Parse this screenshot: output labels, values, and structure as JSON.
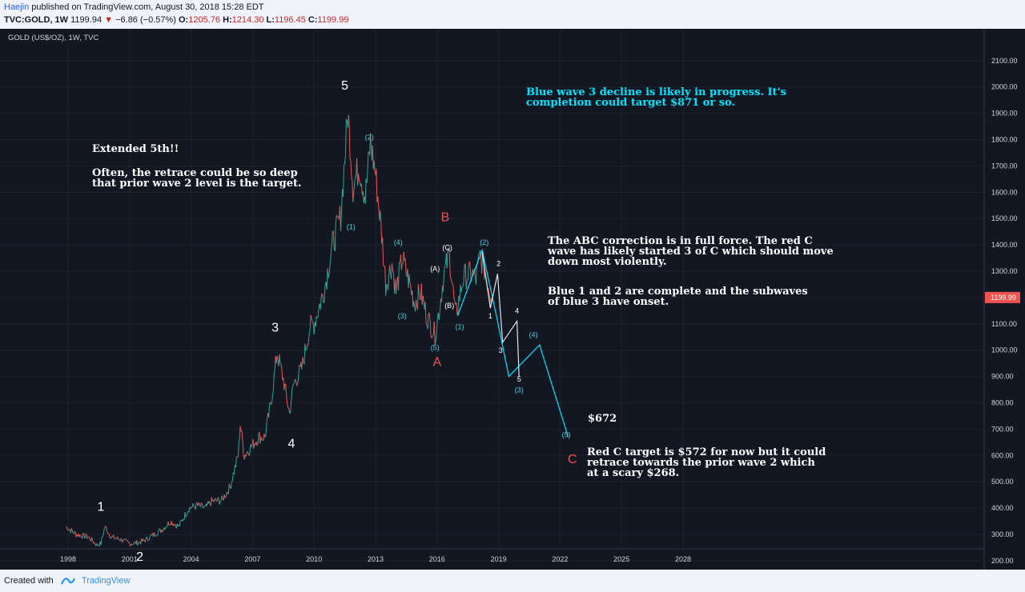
{
  "header": {
    "author": "Haejin",
    "published": "published on TradingView.com, August 30, 2018 15:28 EDT",
    "symbol": "TVC:GOLD, 1W",
    "last": "1199.94",
    "change": "−6.86 (−0.57%)",
    "open_label": "O:",
    "open": "1205.76",
    "high_label": "H:",
    "high": "1214.30",
    "low_label": "L:",
    "low": "1196.45",
    "close_label": "C:",
    "close": "1199.99"
  },
  "chart_title": "GOLD (US$/OZ), 1W, TVC",
  "footer": {
    "created_with": "Created with",
    "brand": "TradingView"
  },
  "colors": {
    "bg": "#131722",
    "up": "#26a69a",
    "down": "#ef5350",
    "cyan": "#00e5ff",
    "red_label": "#ef5350",
    "price_tag": "#ef5350"
  },
  "annotations": {
    "extended_title": "Extended 5th!!",
    "extended_l1": "Often, the retrace could be so deep",
    "extended_l2": "that prior wave 2 level is the target.",
    "blue_l1": "Blue wave 3 decline is likely in progress. It's",
    "blue_l2": "completion could target $871 or so.",
    "abc_l1": "The ABC correction is in full force. The red C",
    "abc_l2": "wave has likely started 3 of C which should move",
    "abc_l3": "down most violently.",
    "blue12_l1": "Blue 1 and 2 are complete and the subwaves",
    "blue12_l2": "of blue 3 have onset.",
    "price672": "$672",
    "redc_l1": "Red C target is $572 for now but it could",
    "redc_l2": "retrace towards the prior wave 2 which",
    "redc_l3": "at a scary $268."
  },
  "chart_data": {
    "type": "line",
    "title": "GOLD (US$/OZ), 1W, TVC",
    "x_ticks": [
      "1998",
      "2001",
      "2004",
      "2007",
      "2010",
      "2013",
      "2016",
      "2019",
      "2022",
      "2025",
      "2028"
    ],
    "y_ticks": [
      "2100.00",
      "2000.00",
      "1900.00",
      "1800.00",
      "1700.00",
      "1600.00",
      "1500.00",
      "1400.00",
      "1300.00",
      "1200.00",
      "1100.00",
      "1000.00",
      "900.00",
      "800.00",
      "700.00",
      "600.00",
      "500.00",
      "400.00",
      "300.00",
      "200.00"
    ],
    "ylim": [
      120,
      2130
    ],
    "xlim": [
      1997.0,
      2030.9
    ],
    "last_price": "1199.99",
    "series": [
      {
        "values": [
          [
            1997.9,
            330
          ],
          [
            1998.4,
            300
          ],
          [
            1999.0,
            290
          ],
          [
            1999.4,
            260
          ],
          [
            1999.6,
            265
          ],
          [
            1999.8,
            330
          ],
          [
            2000.1,
            290
          ],
          [
            2000.6,
            280
          ],
          [
            2001.0,
            265
          ],
          [
            2001.5,
            270
          ],
          [
            2001.8,
            280
          ],
          [
            2002.2,
            300
          ],
          [
            2002.6,
            320
          ],
          [
            2003.0,
            350
          ],
          [
            2003.4,
            330
          ],
          [
            2003.9,
            400
          ],
          [
            2004.3,
            410
          ],
          [
            2004.7,
            400
          ],
          [
            2005.0,
            425
          ],
          [
            2005.5,
            430
          ],
          [
            2005.9,
            480
          ],
          [
            2006.3,
            600
          ],
          [
            2006.4,
            720
          ],
          [
            2006.6,
            600
          ],
          [
            2006.9,
            630
          ],
          [
            2007.3,
            670
          ],
          [
            2007.6,
            670
          ],
          [
            2007.9,
            800
          ],
          [
            2008.2,
            990
          ],
          [
            2008.5,
            890
          ],
          [
            2008.8,
            760
          ],
          [
            2009.0,
            870
          ],
          [
            2009.4,
            930
          ],
          [
            2009.8,
            1090
          ],
          [
            2010.0,
            1100
          ],
          [
            2010.5,
            1230
          ],
          [
            2010.9,
            1400
          ],
          [
            2011.3,
            1510
          ],
          [
            2011.65,
            1900
          ],
          [
            2011.75,
            1800
          ],
          [
            2011.9,
            1620
          ],
          [
            2012.2,
            1700
          ],
          [
            2012.5,
            1580
          ],
          [
            2012.75,
            1790
          ],
          [
            2013.0,
            1670
          ],
          [
            2013.3,
            1440
          ],
          [
            2013.5,
            1250
          ],
          [
            2013.8,
            1330
          ],
          [
            2014.0,
            1220
          ],
          [
            2014.3,
            1350
          ],
          [
            2014.6,
            1270
          ],
          [
            2014.9,
            1180
          ],
          [
            2015.2,
            1220
          ],
          [
            2015.5,
            1130
          ],
          [
            2015.9,
            1060
          ],
          [
            2016.1,
            1150
          ],
          [
            2016.3,
            1270
          ],
          [
            2016.6,
            1370
          ],
          [
            2016.9,
            1130
          ],
          [
            2017.3,
            1280
          ],
          [
            2017.7,
            1290
          ],
          [
            2017.9,
            1270
          ],
          [
            2018.1,
            1360
          ],
          [
            2018.3,
            1310
          ],
          [
            2018.5,
            1250
          ],
          [
            2018.66,
            1199
          ]
        ]
      },
      {
        "name": "",
        "values": [
          [
            2017.0,
            1130
          ],
          [
            2018.2,
            1380
          ],
          [
            2018.9,
            1130
          ],
          [
            2019.5,
            900
          ],
          [
            2021.0,
            1020
          ],
          [
            2022.4,
            670
          ]
        ]
      },
      {
        "name": "",
        "values": [
          [
            2018.2,
            1370
          ],
          [
            2018.6,
            1160
          ],
          [
            2018.95,
            1290
          ],
          [
            2019.2,
            1030
          ],
          [
            2019.9,
            1110
          ],
          [
            2020.0,
            900
          ]
        ]
      }
    ],
    "wave_labels": [
      {
        "t": "1",
        "x": 1999.6,
        "y": 390,
        "style": "big"
      },
      {
        "t": "2",
        "x": 2001.5,
        "y": 200,
        "style": "big"
      },
      {
        "t": "3",
        "x": 2008.1,
        "y": 1070,
        "style": "big"
      },
      {
        "t": "4",
        "x": 2008.9,
        "y": 630,
        "style": "big"
      },
      {
        "t": "5",
        "x": 2011.5,
        "y": 1990,
        "style": "big"
      },
      {
        "t": "B",
        "x": 2016.4,
        "y": 1490,
        "style": "red"
      },
      {
        "t": "A",
        "x": 2016.0,
        "y": 940,
        "style": "red"
      },
      {
        "t": "C",
        "x": 2022.6,
        "y": 570,
        "style": "red"
      },
      {
        "t": "(2)",
        "x": 2012.7,
        "y": 1800,
        "style": "cy"
      },
      {
        "t": "(1)",
        "x": 2011.8,
        "y": 1460,
        "style": "cy"
      },
      {
        "t": "(4)",
        "x": 2014.1,
        "y": 1400,
        "style": "cy"
      },
      {
        "t": "(3)",
        "x": 2014.3,
        "y": 1120,
        "style": "cy"
      },
      {
        "t": "(5)",
        "x": 2015.9,
        "y": 1000,
        "style": "cy"
      },
      {
        "t": "(1)",
        "x": 2017.1,
        "y": 1080,
        "style": "cy"
      },
      {
        "t": "(2)",
        "x": 2018.3,
        "y": 1400,
        "style": "cy"
      },
      {
        "t": "(4)",
        "x": 2020.7,
        "y": 1050,
        "style": "cy"
      },
      {
        "t": "(3)",
        "x": 2020.0,
        "y": 840,
        "style": "cy"
      },
      {
        "t": "(5)",
        "x": 2022.3,
        "y": 670,
        "style": "cy"
      },
      {
        "t": "(A)",
        "x": 2015.9,
        "y": 1300,
        "style": "wh"
      },
      {
        "t": "(C)",
        "x": 2016.5,
        "y": 1380,
        "style": "wh"
      },
      {
        "t": "(B)",
        "x": 2016.6,
        "y": 1160,
        "style": "wh"
      },
      {
        "t": "2",
        "x": 2019.0,
        "y": 1320,
        "style": "wh"
      },
      {
        "t": "1",
        "x": 2018.6,
        "y": 1120,
        "style": "wh"
      },
      {
        "t": "4",
        "x": 2019.9,
        "y": 1140,
        "style": "wh"
      },
      {
        "t": "3",
        "x": 2019.1,
        "y": 990,
        "style": "wh"
      },
      {
        "t": "5",
        "x": 2020.0,
        "y": 880,
        "style": "wh"
      }
    ]
  }
}
